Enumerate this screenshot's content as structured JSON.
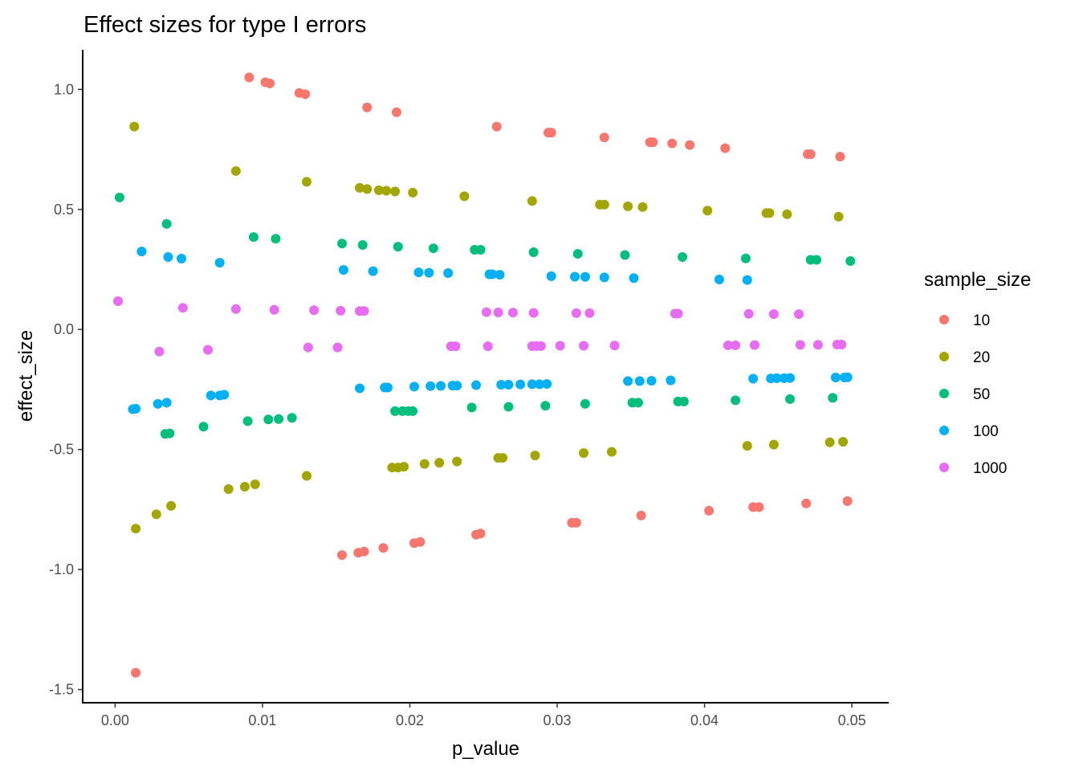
{
  "chart_data": {
    "type": "scatter",
    "title": "Effect sizes for type I errors",
    "xlabel": "p_value",
    "ylabel": "effect_size",
    "xlim": [
      -0.0022,
      0.0525
    ],
    "ylim": [
      -1.555,
      1.165
    ],
    "xticks": [
      0.0,
      0.01,
      0.02,
      0.03,
      0.04,
      0.05
    ],
    "xtick_labels": [
      "0.00",
      "0.01",
      "0.02",
      "0.03",
      "0.04",
      "0.05"
    ],
    "yticks": [
      1.0,
      0.5,
      0.0,
      -0.5,
      -1.0,
      -1.5
    ],
    "ytick_labels": [
      "1.0",
      "0.5",
      "0.0",
      "-0.5",
      "-1.0",
      "-1.5"
    ],
    "grid": false,
    "legend": {
      "title": "sample_size",
      "placement": "right"
    },
    "series": [
      {
        "name": "10",
        "color": "#F8766D",
        "x": [
          0.0091,
          0.0102,
          0.0105,
          0.0125,
          0.0129,
          0.0171,
          0.0191,
          0.0259,
          0.0294,
          0.0296,
          0.0332,
          0.0363,
          0.0365,
          0.0378,
          0.039,
          0.0414,
          0.047,
          0.0472,
          0.0492,
          0.0014,
          0.0154,
          0.0165,
          0.0169,
          0.0182,
          0.0203,
          0.0207,
          0.0245,
          0.0248,
          0.031,
          0.0313,
          0.0357,
          0.0403,
          0.0433,
          0.0437,
          0.0469,
          0.0497
        ],
        "y": [
          1.05,
          1.03,
          1.025,
          0.985,
          0.98,
          0.925,
          0.905,
          0.845,
          0.82,
          0.82,
          0.8,
          0.78,
          0.78,
          0.775,
          0.768,
          0.755,
          0.73,
          0.73,
          0.72,
          -1.43,
          -0.94,
          -0.93,
          -0.925,
          -0.91,
          -0.89,
          -0.885,
          -0.855,
          -0.85,
          -0.805,
          -0.805,
          -0.775,
          -0.755,
          -0.74,
          -0.74,
          -0.725,
          -0.715
        ]
      },
      {
        "name": "20",
        "color": "#A3A500",
        "x": [
          0.0013,
          0.0082,
          0.013,
          0.0166,
          0.0171,
          0.0179,
          0.0184,
          0.019,
          0.0202,
          0.0237,
          0.0283,
          0.0329,
          0.0332,
          0.0348,
          0.0358,
          0.0402,
          0.0442,
          0.0444,
          0.0456,
          0.0491,
          0.0014,
          0.0028,
          0.0038,
          0.0077,
          0.0088,
          0.0095,
          0.013,
          0.0188,
          0.0192,
          0.0196,
          0.021,
          0.022,
          0.0232,
          0.026,
          0.0263,
          0.0285,
          0.0318,
          0.0337,
          0.0429,
          0.0447,
          0.0485,
          0.0494
        ],
        "y": [
          0.845,
          0.66,
          0.615,
          0.59,
          0.585,
          0.58,
          0.578,
          0.575,
          0.57,
          0.555,
          0.535,
          0.52,
          0.52,
          0.513,
          0.51,
          0.495,
          0.485,
          0.485,
          0.48,
          0.47,
          -0.83,
          -0.77,
          -0.735,
          -0.665,
          -0.655,
          -0.645,
          -0.61,
          -0.575,
          -0.575,
          -0.572,
          -0.56,
          -0.555,
          -0.55,
          -0.535,
          -0.535,
          -0.525,
          -0.515,
          -0.51,
          -0.485,
          -0.48,
          -0.47,
          -0.468
        ]
      },
      {
        "name": "50",
        "color": "#00BF7D",
        "x": [
          0.0003,
          0.0035,
          0.0094,
          0.0109,
          0.0154,
          0.0168,
          0.0192,
          0.0216,
          0.0244,
          0.0248,
          0.0284,
          0.0314,
          0.0346,
          0.0385,
          0.0428,
          0.0472,
          0.0476,
          0.0499,
          0.0034,
          0.0037,
          0.006,
          0.009,
          0.0104,
          0.0111,
          0.012,
          0.019,
          0.0195,
          0.0199,
          0.0202,
          0.0242,
          0.0267,
          0.0292,
          0.0319,
          0.0351,
          0.0355,
          0.0382,
          0.0386,
          0.0421,
          0.0458,
          0.0487
        ],
        "y": [
          0.55,
          0.44,
          0.385,
          0.378,
          0.358,
          0.352,
          0.345,
          0.338,
          0.332,
          0.332,
          0.322,
          0.315,
          0.31,
          0.302,
          0.296,
          0.29,
          0.29,
          0.285,
          -0.435,
          -0.433,
          -0.405,
          -0.382,
          -0.375,
          -0.373,
          -0.368,
          -0.34,
          -0.34,
          -0.34,
          -0.34,
          -0.325,
          -0.322,
          -0.318,
          -0.31,
          -0.305,
          -0.305,
          -0.3,
          -0.3,
          -0.295,
          -0.29,
          -0.285
        ]
      },
      {
        "name": "100",
        "color": "#00B0F6",
        "x": [
          0.0018,
          0.0036,
          0.0045,
          0.0071,
          0.0155,
          0.0175,
          0.0206,
          0.0213,
          0.0226,
          0.0254,
          0.0256,
          0.0261,
          0.0296,
          0.0312,
          0.0319,
          0.0332,
          0.0352,
          0.041,
          0.0429,
          0.0012,
          0.0014,
          0.0029,
          0.0035,
          0.0065,
          0.0071,
          0.0074,
          0.0166,
          0.0183,
          0.0185,
          0.0203,
          0.0214,
          0.0221,
          0.0229,
          0.0232,
          0.0245,
          0.0262,
          0.0267,
          0.0275,
          0.0283,
          0.0288,
          0.0293,
          0.0348,
          0.0356,
          0.0364,
          0.0377,
          0.0433,
          0.0445,
          0.0449,
          0.0454,
          0.0458,
          0.0489,
          0.0495,
          0.0497
        ],
        "y": [
          0.325,
          0.302,
          0.295,
          0.278,
          0.248,
          0.243,
          0.238,
          0.236,
          0.235,
          0.23,
          0.23,
          0.228,
          0.222,
          0.22,
          0.219,
          0.217,
          0.214,
          0.208,
          0.206,
          -0.332,
          -0.33,
          -0.31,
          -0.305,
          -0.275,
          -0.275,
          -0.272,
          -0.245,
          -0.242,
          -0.242,
          -0.238,
          -0.236,
          -0.235,
          -0.234,
          -0.234,
          -0.232,
          -0.23,
          -0.23,
          -0.229,
          -0.228,
          -0.228,
          -0.227,
          -0.215,
          -0.215,
          -0.214,
          -0.212,
          -0.205,
          -0.204,
          -0.203,
          -0.203,
          -0.202,
          -0.2,
          -0.2,
          -0.199
        ]
      },
      {
        "name": "1000",
        "color": "#E76BF3",
        "x": [
          0.0002,
          0.0046,
          0.0082,
          0.0108,
          0.0135,
          0.0153,
          0.0166,
          0.0169,
          0.0252,
          0.026,
          0.027,
          0.0284,
          0.0313,
          0.0322,
          0.038,
          0.0382,
          0.043,
          0.0447,
          0.0464,
          0.003,
          0.0063,
          0.0131,
          0.0151,
          0.0228,
          0.0231,
          0.0253,
          0.0283,
          0.0286,
          0.0289,
          0.0302,
          0.0318,
          0.0339,
          0.0416,
          0.0421,
          0.0434,
          0.0465,
          0.0477,
          0.049,
          0.0493
        ],
        "y": [
          0.118,
          0.09,
          0.085,
          0.082,
          0.08,
          0.078,
          0.077,
          0.077,
          0.072,
          0.071,
          0.07,
          0.069,
          0.068,
          0.068,
          0.066,
          0.066,
          0.065,
          0.064,
          0.064,
          -0.092,
          -0.085,
          -0.075,
          -0.075,
          -0.07,
          -0.07,
          -0.07,
          -0.069,
          -0.069,
          -0.069,
          -0.068,
          -0.068,
          -0.067,
          -0.066,
          -0.066,
          -0.065,
          -0.064,
          -0.064,
          -0.063,
          -0.063
        ]
      }
    ]
  }
}
